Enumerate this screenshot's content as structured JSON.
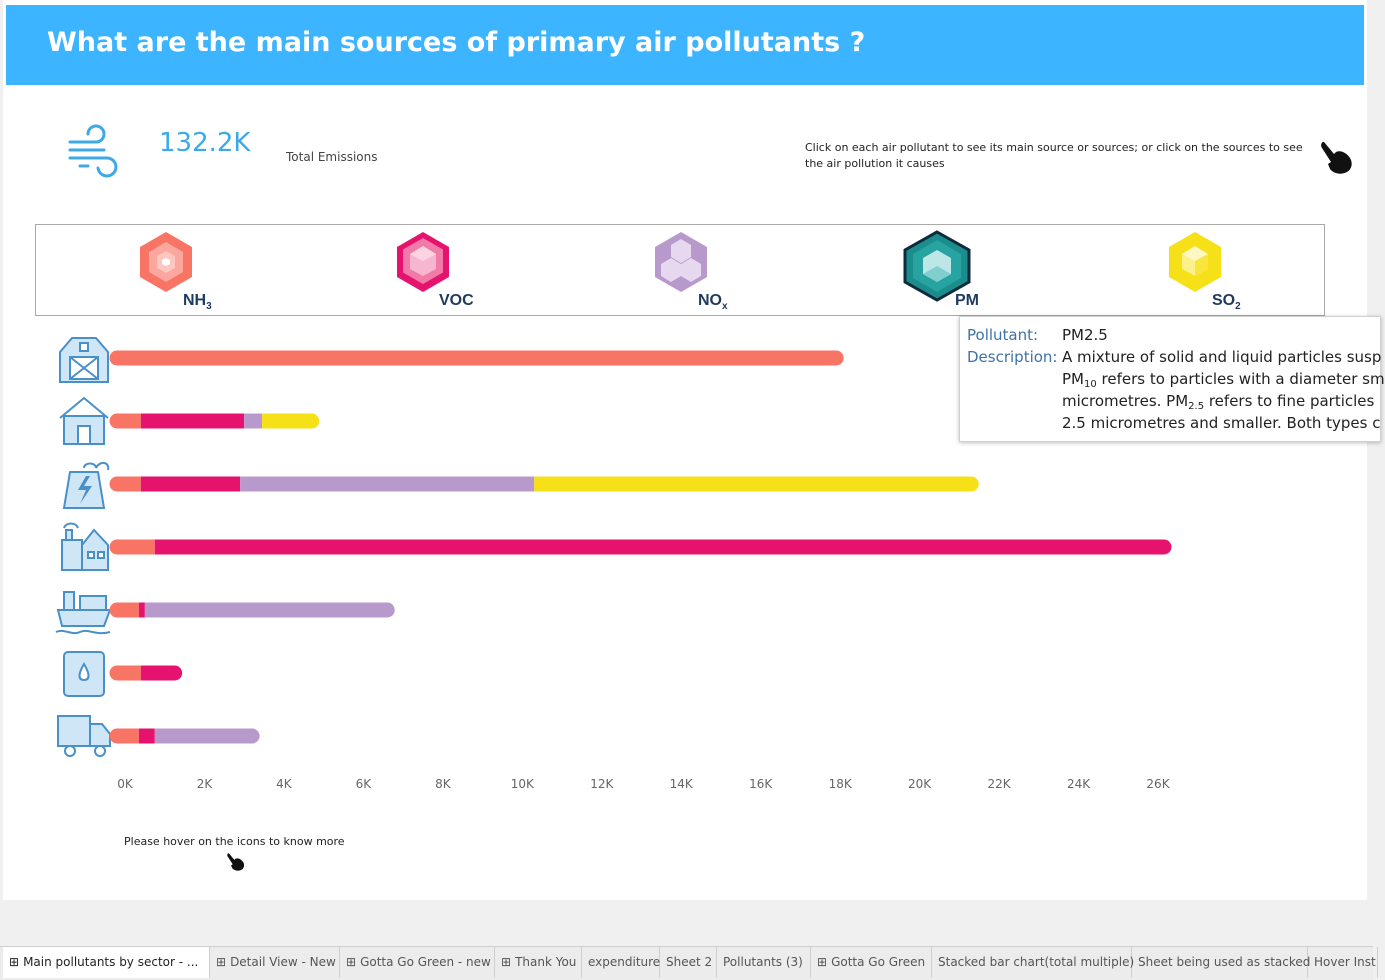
{
  "dashboard": {
    "title": "What are the main sources of primary air pollutants ?",
    "kpi_value": "132.2K",
    "kpi_label": "Total Emissions",
    "instruction": "Click on each air pollutant to see its main source or sources; or click on the sources to see the air pollution it causes",
    "hover_note": "Please hover on the icons to know more"
  },
  "pollutants": [
    {
      "name": "NH",
      "sub": "3",
      "color": "#f87465"
    },
    {
      "name": "VOC",
      "sub": "",
      "color": "#e6136e"
    },
    {
      "name": "NO",
      "sub": "x",
      "color": "#b899cc"
    },
    {
      "name": "PM",
      "sub": "",
      "color": "#27a3a2"
    },
    {
      "name": "SO",
      "sub": "2",
      "color": "#f6e017"
    }
  ],
  "tooltip": {
    "pollutant_key": "Pollutant:",
    "pollutant_value": "PM2.5",
    "description_key": "Description:",
    "line1": "A mixture of solid and liquid particles susp",
    "line2_a": "PM",
    "line2_sub": "10",
    "line2_b": " refers to particles with a diameter sm",
    "line3_a": "micrometres. PM",
    "line3_sub": "2.5",
    "line3_b": " refers to fine particles",
    "line4": "2.5 micrometres and smaller. Both types c"
  },
  "chart_data": {
    "type": "bar",
    "orientation": "horizontal",
    "stacked": true,
    "categories": [
      "agriculture-barn",
      "residential-house",
      "power-plant",
      "industry-factory",
      "shipping",
      "fuel-storage",
      "road-transport-truck"
    ],
    "series": [
      {
        "name": "NH3",
        "color": "#f87465",
        "values": [
          17900,
          400,
          400,
          750,
          350,
          400,
          350
        ]
      },
      {
        "name": "VOC",
        "color": "#e6136e",
        "values": [
          0,
          2600,
          2500,
          25400,
          150,
          850,
          400
        ]
      },
      {
        "name": "NOx",
        "color": "#b899cc",
        "values": [
          0,
          450,
          7400,
          0,
          6100,
          0,
          2450
        ]
      },
      {
        "name": "SO2",
        "color": "#f6e017",
        "values": [
          0,
          1250,
          11000,
          0,
          0,
          0,
          0
        ]
      }
    ],
    "xlim": [
      0,
      26000
    ],
    "xticks": [
      "0K",
      "2K",
      "4K",
      "6K",
      "8K",
      "10K",
      "12K",
      "14K",
      "16K",
      "18K",
      "20K",
      "22K",
      "24K",
      "26K"
    ],
    "grid": false,
    "legend": "none"
  },
  "tabs": [
    {
      "label": "Main pollutants by sector - ...",
      "icon": true,
      "active": true
    },
    {
      "label": "Detail View - New",
      "icon": true
    },
    {
      "label": "Gotta Go Green - new",
      "icon": true
    },
    {
      "label": "Thank You",
      "icon": true
    },
    {
      "label": "expenditure",
      "icon": false
    },
    {
      "label": "Sheet 2",
      "icon": false
    },
    {
      "label": "Pollutants (3)",
      "icon": false
    },
    {
      "label": "Gotta Go Green",
      "icon": true
    },
    {
      "label": "Stacked bar chart(total multiple)",
      "icon": false
    },
    {
      "label": "Sheet being used as stacked",
      "icon": false
    },
    {
      "label": "Hover Inst",
      "icon": false
    }
  ],
  "icons": {
    "tab_icon": "⊞"
  }
}
